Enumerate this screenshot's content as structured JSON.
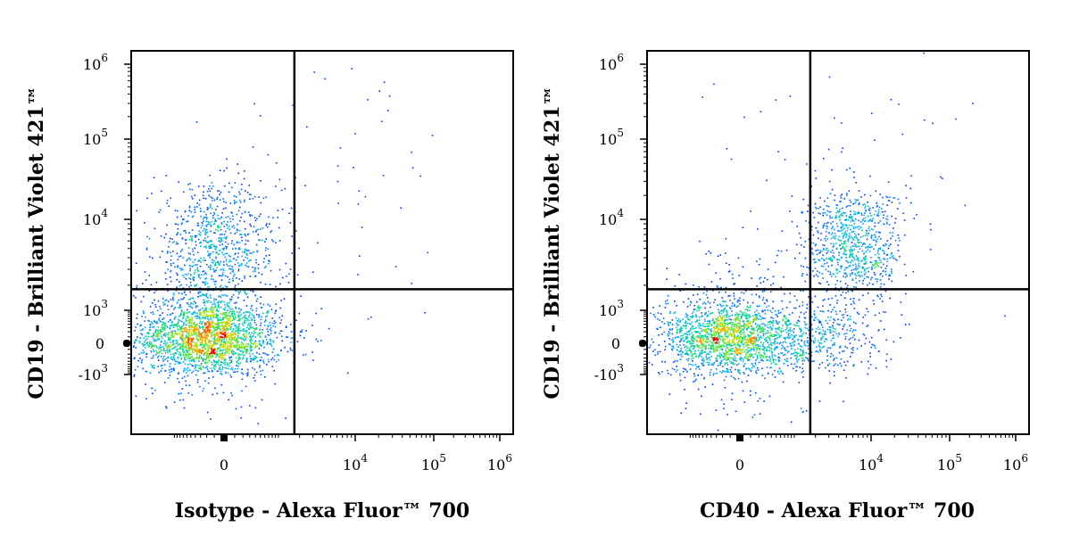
{
  "chart_data": [
    {
      "type": "scatter",
      "subtype": "flow-cytometry-density",
      "xlabel": "Isotype - Alexa Fluor™ 700",
      "ylabel": "CD19 - Brilliant Violet 421™",
      "x_scale": "biexponential",
      "y_scale": "biexponential",
      "x_ticks": [
        {
          "value": 0,
          "base": "0",
          "exp": ""
        },
        {
          "value": 10000,
          "base": "10",
          "exp": "4"
        },
        {
          "value": 100000,
          "base": "10",
          "exp": "5"
        },
        {
          "value": 1000000,
          "base": "10",
          "exp": "6"
        }
      ],
      "y_ticks": [
        {
          "value": 1000000,
          "base": "10",
          "exp": "6"
        },
        {
          "value": 100000,
          "base": "10",
          "exp": "5"
        },
        {
          "value": 10000,
          "base": "10",
          "exp": "4"
        },
        {
          "value": 1000,
          "base": "10",
          "exp": "3"
        },
        {
          "value": 0,
          "base": "0",
          "exp": ""
        },
        {
          "value": -1000,
          "base": "-10",
          "exp": "3"
        }
      ],
      "quadrant_gate": {
        "x": 1700,
        "y": 1800
      },
      "populations": [
        {
          "name": "CD19- cells",
          "center": [
            -200,
            100
          ],
          "spread_decades": [
            0.45,
            0.4
          ],
          "share": 0.72
        },
        {
          "name": "CD19+ cells",
          "center": [
            -100,
            5000
          ],
          "spread_decades": [
            0.4,
            0.35
          ],
          "share": 0.26
        },
        {
          "name": "outliers",
          "center": [
            3000,
            30000
          ],
          "spread_decades": [
            1.0,
            1.0
          ],
          "share": 0.02
        }
      ]
    },
    {
      "type": "scatter",
      "subtype": "flow-cytometry-density",
      "xlabel": "CD40 - Alexa Fluor™ 700",
      "ylabel": "CD19 - Brilliant Violet 421™",
      "x_scale": "biexponential",
      "y_scale": "biexponential",
      "x_ticks": [
        {
          "value": 0,
          "base": "0",
          "exp": ""
        },
        {
          "value": 10000,
          "base": "10",
          "exp": "4"
        },
        {
          "value": 100000,
          "base": "10",
          "exp": "5"
        },
        {
          "value": 1000000,
          "base": "10",
          "exp": "6"
        }
      ],
      "y_ticks": [
        {
          "value": 1000000,
          "base": "10",
          "exp": "6"
        },
        {
          "value": 100000,
          "base": "10",
          "exp": "5"
        },
        {
          "value": 10000,
          "base": "10",
          "exp": "4"
        },
        {
          "value": 1000,
          "base": "10",
          "exp": "3"
        },
        {
          "value": 0,
          "base": "0",
          "exp": ""
        },
        {
          "value": -1000,
          "base": "-10",
          "exp": "3"
        }
      ],
      "quadrant_gate": {
        "x": 1700,
        "y": 1800
      },
      "populations": [
        {
          "name": "CD40- CD19- cells",
          "center": [
            -100,
            100
          ],
          "spread_decades": [
            0.45,
            0.4
          ],
          "share": 0.62
        },
        {
          "name": "CD40 low CD19- cells",
          "center": [
            2500,
            100
          ],
          "spread_decades": [
            0.35,
            0.35
          ],
          "share": 0.1
        },
        {
          "name": "CD40+ CD19+ cells",
          "center": [
            6000,
            5500
          ],
          "spread_decades": [
            0.3,
            0.3
          ],
          "share": 0.26
        },
        {
          "name": "outliers",
          "center": [
            5000,
            50000
          ],
          "spread_decades": [
            0.8,
            0.8
          ],
          "share": 0.02
        }
      ]
    }
  ]
}
